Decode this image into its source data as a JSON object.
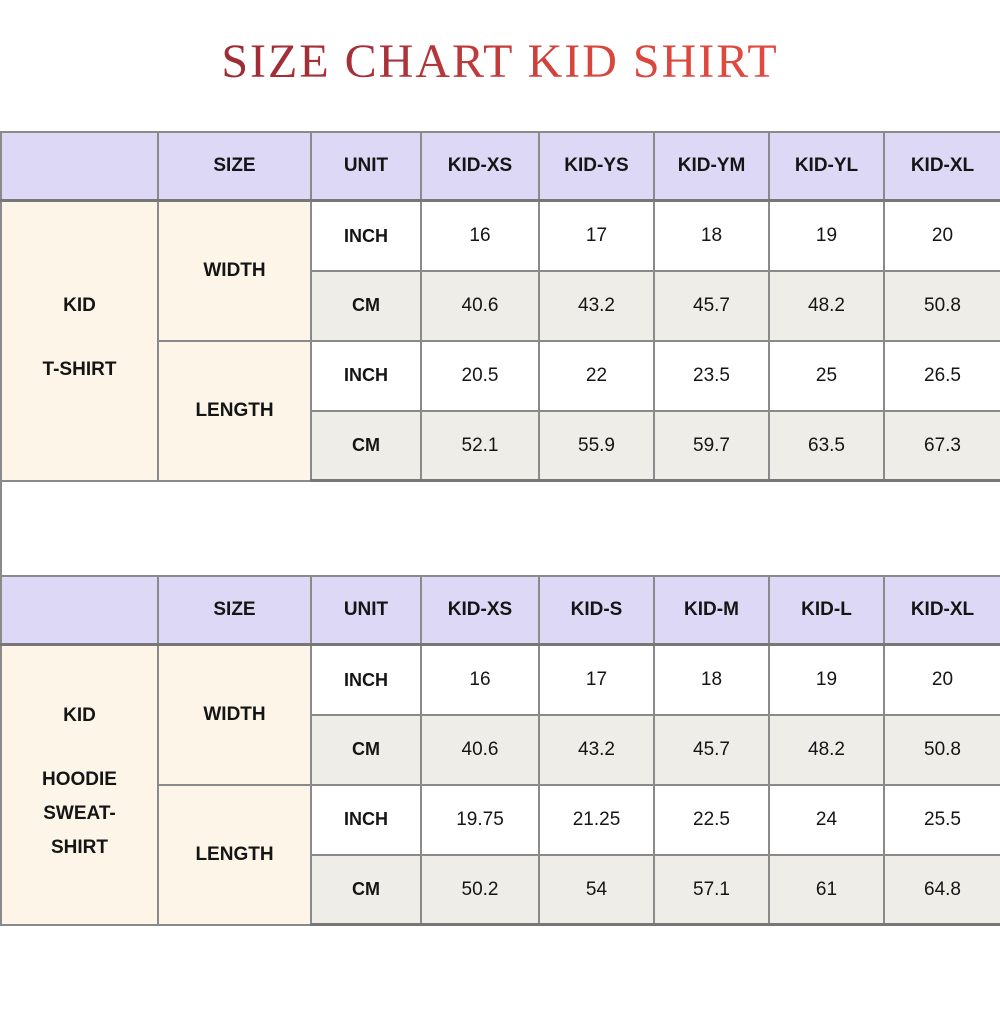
{
  "title": "SIZE CHART KID SHIRT",
  "colors": {
    "title_gradient_start": "#8e2a33",
    "title_gradient_end": "#ea4f44",
    "header_background": "#dcd8f6",
    "label_background": "#fcf5e8",
    "alt_row_background": "#efede8",
    "row_background": "#ffffff",
    "border": "#8a8a8a",
    "text": "#151515"
  },
  "tables": [
    {
      "product": {
        "top": "KID",
        "rest": "T-SHIRT"
      },
      "headers": [
        "",
        "SIZE",
        "UNIT",
        "KID-XS",
        "KID-YS",
        "KID-YM",
        "KID-YL",
        "KID-XL"
      ],
      "measurements": [
        {
          "label": "WIDTH",
          "units": [
            {
              "label": "INCH",
              "values": [
                "16",
                "17",
                "18",
                "19",
                "20"
              ]
            },
            {
              "label": "CM",
              "values": [
                "40.6",
                "43.2",
                "45.7",
                "48.2",
                "50.8"
              ]
            }
          ]
        },
        {
          "label": "LENGTH",
          "units": [
            {
              "label": "INCH",
              "values": [
                "20.5",
                "22",
                "23.5",
                "25",
                "26.5"
              ]
            },
            {
              "label": "CM",
              "values": [
                "52.1",
                "55.9",
                "59.7",
                "63.5",
                "67.3"
              ]
            }
          ]
        }
      ]
    },
    {
      "product": {
        "top": "KID",
        "rest": "HOODIE\nSWEAT-\nSHIRT"
      },
      "headers": [
        "",
        "SIZE",
        "UNIT",
        "KID-XS",
        "KID-S",
        "KID-M",
        "KID-L",
        "KID-XL"
      ],
      "measurements": [
        {
          "label": "WIDTH",
          "units": [
            {
              "label": "INCH",
              "values": [
                "16",
                "17",
                "18",
                "19",
                "20"
              ]
            },
            {
              "label": "CM",
              "values": [
                "40.6",
                "43.2",
                "45.7",
                "48.2",
                "50.8"
              ]
            }
          ]
        },
        {
          "label": "LENGTH",
          "units": [
            {
              "label": "INCH",
              "values": [
                "19.75",
                "21.25",
                "22.5",
                "24",
                "25.5"
              ]
            },
            {
              "label": "CM",
              "values": [
                "50.2",
                "54",
                "57.1",
                "61",
                "64.8"
              ]
            }
          ]
        }
      ]
    }
  ],
  "chart_data": [
    {
      "type": "table",
      "title": "KID T-SHIRT",
      "columns": [
        "SIZE",
        "UNIT",
        "KID-XS",
        "KID-YS",
        "KID-YM",
        "KID-YL",
        "KID-XL"
      ],
      "rows": [
        [
          "WIDTH",
          "INCH",
          16,
          17,
          18,
          19,
          20
        ],
        [
          "WIDTH",
          "CM",
          40.6,
          43.2,
          45.7,
          48.2,
          50.8
        ],
        [
          "LENGTH",
          "INCH",
          20.5,
          22,
          23.5,
          25,
          26.5
        ],
        [
          "LENGTH",
          "CM",
          52.1,
          55.9,
          59.7,
          63.5,
          67.3
        ]
      ]
    },
    {
      "type": "table",
      "title": "KID HOODIE SWEAT-SHIRT",
      "columns": [
        "SIZE",
        "UNIT",
        "KID-XS",
        "KID-S",
        "KID-M",
        "KID-L",
        "KID-XL"
      ],
      "rows": [
        [
          "WIDTH",
          "INCH",
          16,
          17,
          18,
          19,
          20
        ],
        [
          "WIDTH",
          "CM",
          40.6,
          43.2,
          45.7,
          48.2,
          50.8
        ],
        [
          "LENGTH",
          "INCH",
          19.75,
          21.25,
          22.5,
          24,
          25.5
        ],
        [
          "LENGTH",
          "CM",
          50.2,
          54,
          57.1,
          61,
          64.8
        ]
      ]
    }
  ]
}
